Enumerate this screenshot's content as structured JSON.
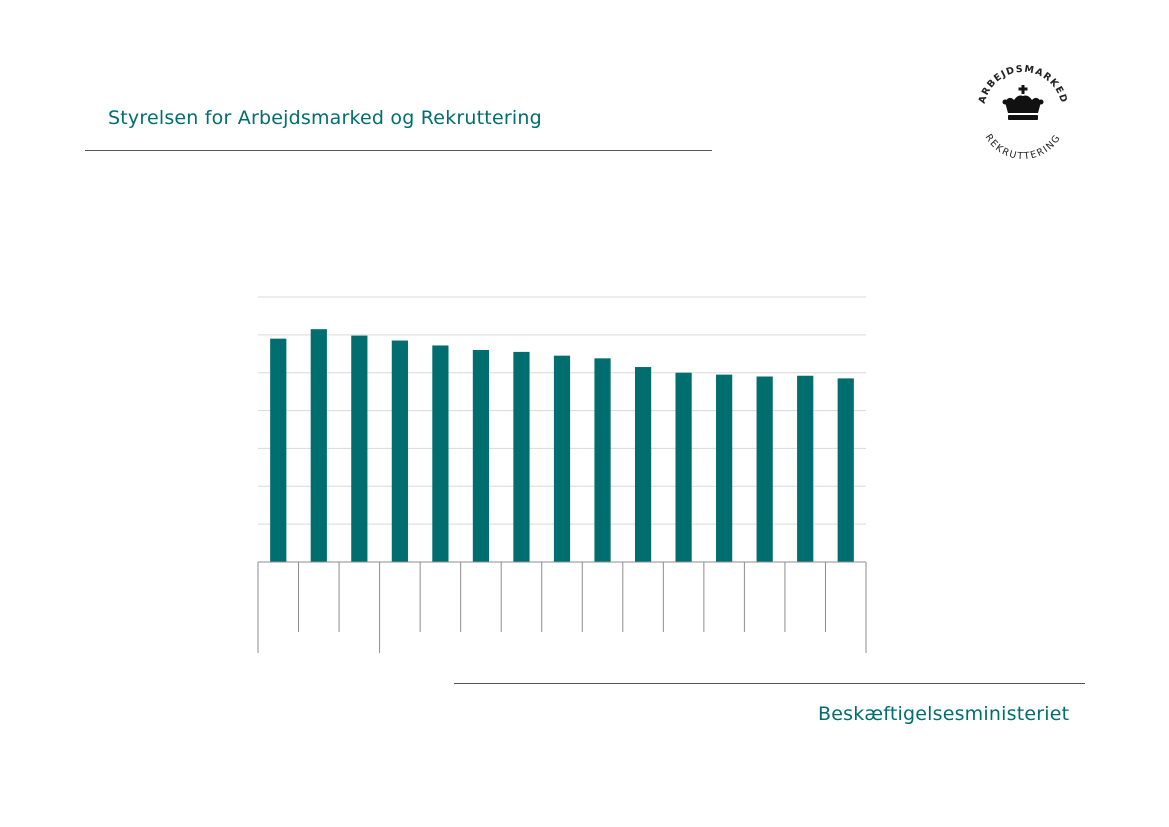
{
  "colors": {
    "accent": "#006D6F",
    "gridline": "#D9D9D9",
    "axis": "#8C8C8C"
  },
  "header": {
    "title": "Styrelsen for Arbejdsmarked og Rekruttering"
  },
  "logo": {
    "top_text": "ARBEJDSMARKED",
    "bottom_text": "REKRUTTERING",
    "icon": "crown-icon"
  },
  "footer": {
    "title": "Beskæftigelsesministeriet"
  },
  "chart_data": {
    "type": "bar",
    "categories": [
      "",
      "",
      "",
      "",
      "",
      "",
      "",
      "",
      "",
      "",
      "",
      "",
      "",
      "",
      ""
    ],
    "values": [
      5.9,
      6.15,
      5.98,
      5.85,
      5.72,
      5.6,
      5.55,
      5.45,
      5.38,
      5.15,
      5.0,
      4.95,
      4.9,
      4.92,
      4.85
    ],
    "title": "",
    "xlabel": "",
    "ylabel": "",
    "ylim": [
      0,
      7
    ],
    "yticks": [
      0,
      1,
      2,
      3,
      4,
      5,
      6,
      7
    ],
    "grid": true,
    "legend": "none",
    "x_group_sizes": [
      3,
      12
    ]
  }
}
